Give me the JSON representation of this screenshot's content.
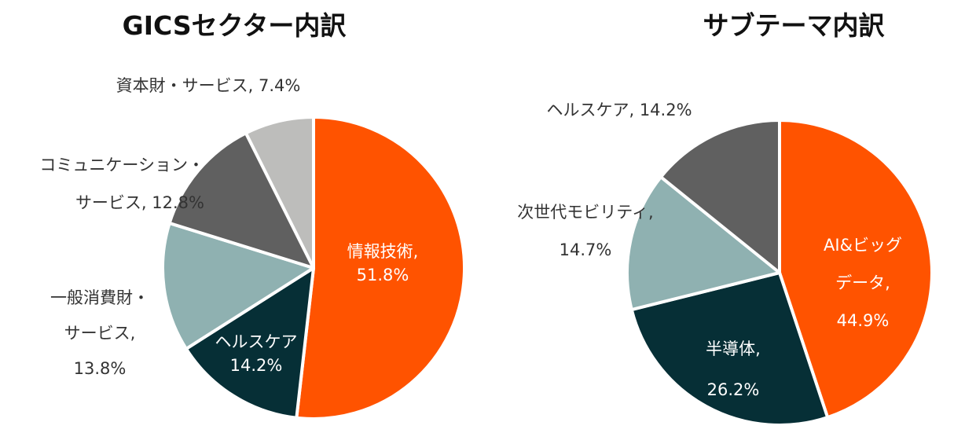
{
  "chart_data": [
    {
      "type": "pie",
      "title": "GICSセクター内訳",
      "slices": [
        {
          "label": "情報技術",
          "value": 51.8,
          "value_text": "51.8%",
          "color": "#FF5300"
        },
        {
          "label": "ヘルスケア",
          "value": 14.2,
          "value_text": "14.2%",
          "color": "#062F36"
        },
        {
          "label": "一般消費財・サービス",
          "value": 13.8,
          "value_text": "13.8%",
          "color": "#8FB1B1"
        },
        {
          "label": "コミュニケーション・サービス",
          "value": 12.8,
          "value_text": "12.8%",
          "color": "#606060"
        },
        {
          "label": "資本財・サービス",
          "value": 7.4,
          "value_text": "7.4%",
          "color": "#BDBDBB"
        }
      ],
      "data_labels": [
        {
          "lines": [
            "情報技術,",
            "51.8%"
          ]
        },
        {
          "lines": [
            "ヘルスケア",
            "14.2%"
          ]
        },
        {
          "lines": [
            "一般消費財・",
            "サービス,",
            "13.8%"
          ]
        },
        {
          "lines": [
            "コミュニケーション・",
            "サービス, 12.8%"
          ]
        },
        {
          "lines": [
            "資本財・サービス, 7.4%"
          ]
        }
      ]
    },
    {
      "type": "pie",
      "title": "サブテーマ内訳",
      "slices": [
        {
          "label": "AI&ビッグデータ",
          "value": 44.9,
          "value_text": "44.9%",
          "color": "#FF5300"
        },
        {
          "label": "半導体",
          "value": 26.2,
          "value_text": "26.2%",
          "color": "#062F36"
        },
        {
          "label": "次世代モビリティ",
          "value": 14.7,
          "value_text": "14.7%",
          "color": "#8FB1B1"
        },
        {
          "label": "ヘルスケア",
          "value": 14.2,
          "value_text": "14.2%",
          "color": "#606060"
        }
      ],
      "data_labels": [
        {
          "lines": [
            "AI&ビッグ",
            "データ,",
            "44.9%"
          ]
        },
        {
          "lines": [
            "半導体,",
            "26.2%"
          ]
        },
        {
          "lines": [
            "次世代モビリティ,",
            "14.7%"
          ]
        },
        {
          "lines": [
            "ヘルスケア, 14.2%"
          ]
        }
      ]
    }
  ]
}
